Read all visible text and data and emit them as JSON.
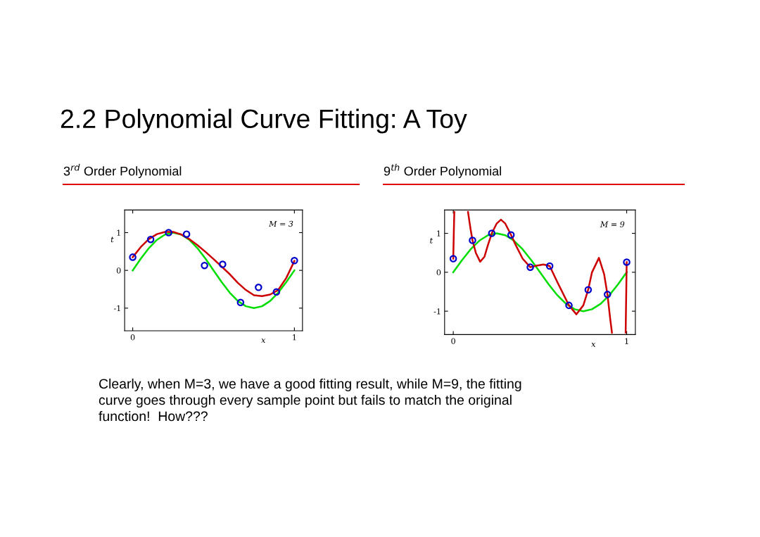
{
  "chart_data": [
    {
      "type": "line",
      "title": "3$^{rd}$ Order Polynomial",
      "xlabel": "x",
      "ylabel": "t",
      "annotations": [
        "M = 3",
        "2.2 Polynomial Curve Fitting: A Toy"
      ],
      "xlim": [
        -0.05,
        1.05
      ],
      "ylim": [
        -1.6,
        1.6
      ],
      "xticks": [
        0,
        1
      ],
      "yticks": [
        -1,
        0,
        1
      ],
      "grid": false,
      "legend": false,
      "series": [
        {
          "color": "#00dd00",
          "x": [
            0,
            0.05,
            0.1,
            0.15,
            0.2,
            0.25,
            0.3,
            0.35,
            0.4,
            0.45,
            0.5,
            0.55,
            0.6,
            0.65,
            0.7,
            0.75,
            0.8,
            0.85,
            0.9,
            0.95,
            1
          ],
          "values": [
            0,
            0.31,
            0.59,
            0.81,
            0.95,
            1,
            0.95,
            0.81,
            0.59,
            0.31,
            0,
            -0.31,
            -0.59,
            -0.81,
            -0.95,
            -1,
            -0.95,
            -0.81,
            -0.59,
            -0.31,
            0
          ]
        },
        {
          "color": "#cc0000",
          "x": [
            0,
            0.05,
            0.1,
            0.15,
            0.2,
            0.25,
            0.3,
            0.35,
            0.4,
            0.45,
            0.5,
            0.55,
            0.6,
            0.65,
            0.7,
            0.75,
            0.8,
            0.85,
            0.9,
            0.95,
            1
          ],
          "values": [
            0.35,
            0.62,
            0.83,
            0.96,
            1.02,
            1.02,
            0.95,
            0.83,
            0.67,
            0.49,
            0.3,
            0.1,
            -0.1,
            -0.33,
            -0.52,
            -0.66,
            -0.68,
            -0.64,
            -0.52,
            -0.2,
            0.25
          ]
        },
        {
          "type": "scatter",
          "marker": "circle",
          "color": "#0000cc",
          "x": [
            0,
            0.111,
            0.222,
            0.333,
            0.444,
            0.556,
            0.667,
            0.778,
            0.889,
            1
          ],
          "values": [
            0.35,
            0.82,
            1.0,
            0.96,
            0.13,
            0.16,
            -0.85,
            -0.45,
            -0.57,
            0.26
          ]
        }
      ]
    },
    {
      "type": "line",
      "title": "9$^{th}$ Order Polynomial",
      "xlabel": "x",
      "ylabel": "t",
      "annotations": [
        "M = 9",
        "Clearly, when M=3, we have a good fitting result, while M=9, the fitting\ncurve goes through every sample point but fails to match the original\nfunction!  How???"
      ],
      "xlim": [
        -0.05,
        1.05
      ],
      "ylim": [
        -1.6,
        1.6
      ],
      "xticks": [
        0,
        1
      ],
      "yticks": [
        -1,
        0,
        1
      ],
      "grid": false,
      "legend": false,
      "series": [
        {
          "color": "#00dd00",
          "x": [
            0,
            0.05,
            0.1,
            0.15,
            0.2,
            0.25,
            0.3,
            0.35,
            0.4,
            0.45,
            0.5,
            0.55,
            0.6,
            0.65,
            0.7,
            0.75,
            0.8,
            0.85,
            0.9,
            0.95,
            1
          ],
          "values": [
            0,
            0.31,
            0.59,
            0.81,
            0.95,
            1,
            0.95,
            0.81,
            0.59,
            0.31,
            0,
            -0.31,
            -0.59,
            -0.81,
            -0.95,
            -1,
            -0.95,
            -0.81,
            -0.59,
            -0.31,
            0
          ]
        },
        {
          "color": "#cc0000",
          "x": [
            0,
            0.003,
            0.006,
            0.04,
            0.085,
            0.1,
            0.111,
            0.13,
            0.155,
            0.18,
            0.2,
            0.222,
            0.25,
            0.275,
            0.3,
            0.333,
            0.36,
            0.4,
            0.444,
            0.48,
            0.52,
            0.556,
            0.6,
            0.667,
            0.71,
            0.75,
            0.778,
            0.8,
            0.84,
            0.87,
            0.889,
            0.905,
            0.915,
            0.95,
            0.994,
            1
          ],
          "values": [
            0.35,
            1.0,
            1.55,
            null,
            1.55,
            1.1,
            0.82,
            0.5,
            0.27,
            0.4,
            0.7,
            1.0,
            1.25,
            1.35,
            1.25,
            0.96,
            0.7,
            0.35,
            0.13,
            0.17,
            0.2,
            0.16,
            -0.25,
            -0.85,
            -1.08,
            -0.85,
            -0.45,
            0.0,
            0.37,
            -0.05,
            -0.57,
            -1.2,
            -1.55,
            null,
            -1.55,
            0.26
          ]
        },
        {
          "type": "scatter",
          "marker": "circle",
          "color": "#0000cc",
          "x": [
            0,
            0.111,
            0.222,
            0.333,
            0.444,
            0.556,
            0.667,
            0.778,
            0.889,
            1
          ],
          "values": [
            0.35,
            0.82,
            1.0,
            0.96,
            0.13,
            0.16,
            -0.85,
            -0.45,
            -0.57,
            0.26
          ]
        }
      ]
    }
  ]
}
